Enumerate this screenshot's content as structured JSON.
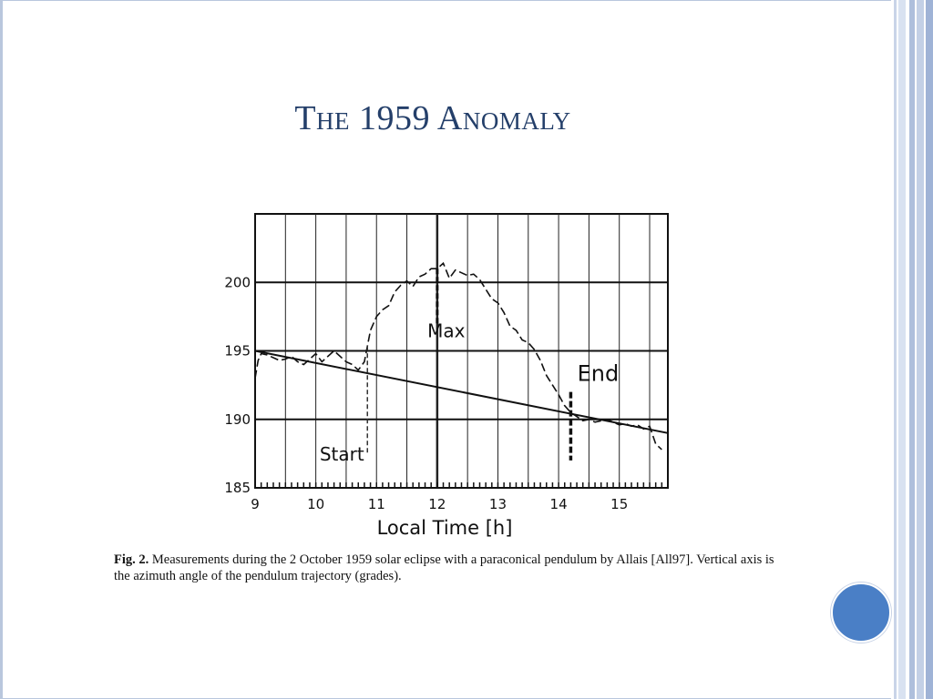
{
  "slide": {
    "title": "The 1959 Anomaly",
    "caption_label": "Fig.  2.",
    "caption_text": "Measurements during the 2 October 1959 solar eclipse with a paraconical pendulum by Allais [All97]. Vertical axis is the azimuth angle of the pendulum trajectory (grades).",
    "colors": {
      "title": "#243f6a",
      "accent": "#4a7fc6",
      "frame": "#b9c7dd"
    }
  },
  "chart_data": {
    "type": "line",
    "title": "",
    "xlabel": "Local Time [h]",
    "ylabel": "",
    "xlim": [
      9,
      15.8
    ],
    "ylim": [
      185,
      205
    ],
    "x_ticks": [
      9,
      10,
      11,
      12,
      13,
      14,
      15
    ],
    "y_ticks": [
      185,
      190,
      195,
      200
    ],
    "grid": true,
    "series": [
      {
        "style": "dashed",
        "x": [
          9.0,
          9.05,
          9.1,
          9.2,
          9.3,
          9.4,
          9.5,
          9.6,
          9.7,
          9.8,
          9.9,
          10.0,
          10.1,
          10.2,
          10.3,
          10.4,
          10.5,
          10.6,
          10.7,
          10.8,
          10.9,
          11.0,
          11.1,
          11.2,
          11.3,
          11.4,
          11.5,
          11.6,
          11.7,
          11.8,
          11.9,
          12.0,
          12.1,
          12.2,
          12.3,
          12.4,
          12.5,
          12.6,
          12.7,
          12.8,
          12.9,
          13.0,
          13.1,
          13.2,
          13.3,
          13.4,
          13.5,
          13.6,
          13.7,
          13.8,
          13.9,
          14.0,
          14.1,
          14.2,
          14.3,
          14.4,
          14.5,
          14.6,
          14.7,
          14.8,
          14.9,
          15.0,
          15.1,
          15.2,
          15.3,
          15.4,
          15.5,
          15.6,
          15.7
        ],
        "y": [
          193.0,
          194.3,
          194.8,
          194.7,
          194.5,
          194.3,
          194.4,
          194.6,
          194.2,
          194.0,
          194.4,
          194.8,
          194.2,
          194.6,
          195.0,
          194.6,
          194.2,
          194.0,
          193.6,
          194.2,
          196.5,
          197.5,
          198.0,
          198.3,
          199.3,
          199.8,
          200.1,
          199.7,
          200.4,
          200.6,
          201.0,
          201.0,
          201.4,
          200.3,
          200.9,
          200.7,
          200.5,
          200.6,
          200.2,
          199.5,
          198.8,
          198.5,
          197.8,
          196.8,
          196.5,
          195.8,
          195.6,
          195.1,
          194.3,
          193.2,
          192.5,
          191.8,
          191.0,
          190.5,
          190.2,
          189.9,
          190.0,
          189.8,
          189.9,
          190.0,
          189.8,
          189.6,
          189.7,
          189.5,
          189.6,
          189.3,
          189.5,
          188.2,
          187.8
        ]
      },
      {
        "style": "solid",
        "x": [
          9.0,
          15.8
        ],
        "y": [
          195.0,
          189.0
        ]
      }
    ],
    "annotations": [
      {
        "text": "Start",
        "x": 10.85
      },
      {
        "text": "Max",
        "x": 12.0
      },
      {
        "text": "End",
        "x": 14.2
      }
    ]
  }
}
